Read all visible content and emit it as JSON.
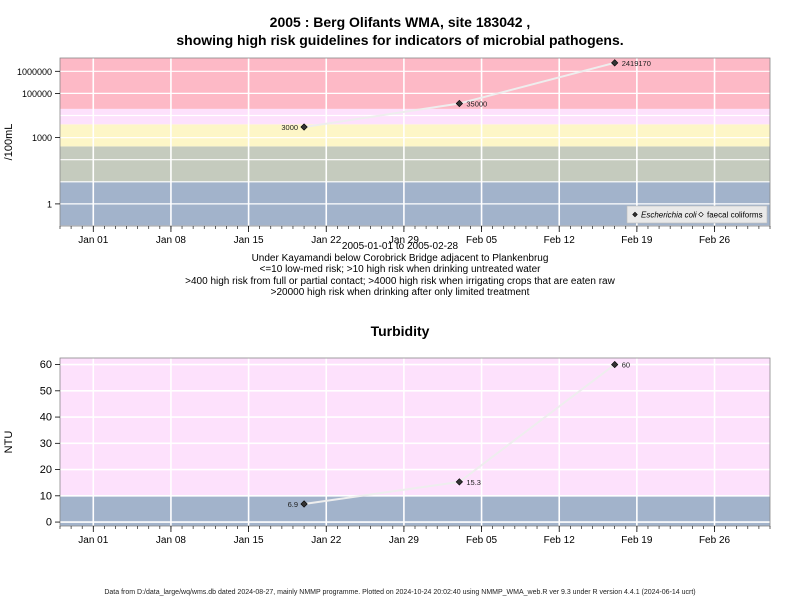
{
  "chart_data": [
    {
      "type": "scatter",
      "title_line1": "2005 : Berg Olifants WMA, site 183042 ,",
      "title_line2": "showing high risk guidelines for indicators of microbial pathogens.",
      "ylabel": "/100mL",
      "xlabel_lines": [
        "2005-01-01 to 2005-02-28",
        "Under Kayamandi below Corobrick Bridge adjacent to Plankenbrug",
        "<=10 low-med risk; >10 high risk when drinking untreated water",
        ">400 high risk from full or partial contact; >4000 high risk when irrigating crops that are eaten raw",
        ">20000 high risk when drinking after only limited treatment"
      ],
      "y_scale": "log",
      "ylim": [
        0.1,
        4000000
      ],
      "yticks": [
        1,
        1000,
        100000,
        1000000
      ],
      "ytick_labels": [
        "1",
        "1000",
        "100000",
        "1000000"
      ],
      "xlim": [
        "2004-12-29",
        "2005-03-03"
      ],
      "xticks": [
        "2005-01-01",
        "2005-01-08",
        "2005-01-15",
        "2005-01-22",
        "2005-01-29",
        "2005-02-05",
        "2005-02-12",
        "2005-02-19",
        "2005-02-26"
      ],
      "xtick_labels": [
        "Jan 01",
        "Jan 08",
        "Jan 15",
        "Jan 22",
        "Jan 29",
        "Feb 05",
        "Feb 12",
        "Feb 19",
        "Feb 26"
      ],
      "bands": [
        {
          "from": 0.1,
          "to": 10,
          "color": "#a2b3cb"
        },
        {
          "from": 10,
          "to": 400,
          "color": "#c5cbbe"
        },
        {
          "from": 400,
          "to": 4000,
          "color": "#fdf6c7"
        },
        {
          "from": 4000,
          "to": 20000,
          "color": "#fde1fc"
        },
        {
          "from": 20000,
          "to": 4000000,
          "color": "#fdb9c6"
        }
      ],
      "series": [
        {
          "name": "Escherichia coli",
          "marker": "filled-diamond",
          "x": [
            "2005-01-20",
            "2005-02-03",
            "2005-02-17"
          ],
          "y": [
            3000,
            35000,
            2419170
          ],
          "labels": [
            "3000",
            "35000",
            "2419170"
          ]
        },
        {
          "name": "faecal coliforms",
          "marker": "open-diamond",
          "x": [],
          "y": [],
          "labels": []
        }
      ],
      "legend_position": "bottom-right"
    },
    {
      "type": "scatter",
      "title": "Turbidity",
      "ylabel": "NTU",
      "ylim": [
        -1.5,
        62.5
      ],
      "yticks": [
        0,
        10,
        20,
        30,
        40,
        50,
        60
      ],
      "ytick_labels": [
        "0",
        "10",
        "20",
        "30",
        "40",
        "50",
        "60"
      ],
      "xlim": [
        "2004-12-29",
        "2005-03-03"
      ],
      "xticks": [
        "2005-01-01",
        "2005-01-08",
        "2005-01-15",
        "2005-01-22",
        "2005-01-29",
        "2005-02-05",
        "2005-02-12",
        "2005-02-19",
        "2005-02-26"
      ],
      "xtick_labels": [
        "Jan 01",
        "Jan 08",
        "Jan 15",
        "Jan 22",
        "Jan 29",
        "Feb 05",
        "Feb 12",
        "Feb 19",
        "Feb 26"
      ],
      "bands": [
        {
          "from": -1.5,
          "to": 10,
          "color": "#a2b3cb"
        },
        {
          "from": 10,
          "to": 62.5,
          "color": "#fde1fc"
        }
      ],
      "series": [
        {
          "marker": "filled-diamond",
          "x": [
            "2005-01-20",
            "2005-02-03",
            "2005-02-17"
          ],
          "y": [
            6.9,
            15.3,
            60
          ],
          "labels": [
            "6.9",
            "15.3",
            "60"
          ]
        }
      ]
    }
  ],
  "footer": "Data from D:/data_large/wq/wms.db dated 2024-08-27, mainly NMMP programme. Plotted on 2024-10-24 20:02:40 using NMMP_WMA_web.R ver 9.3 under R version 4.4.1 (2024-06-14 ucrt)"
}
